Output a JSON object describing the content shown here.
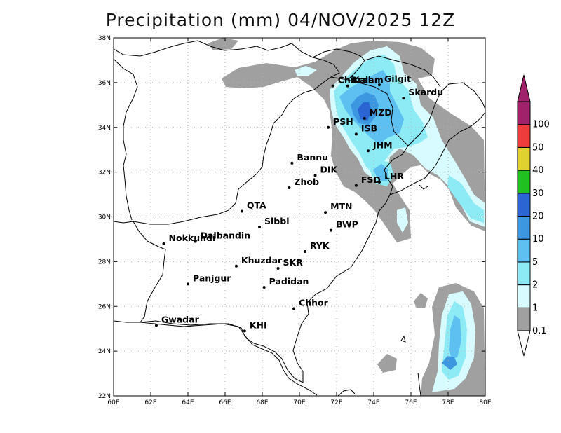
{
  "title": "Precipitation (mm) 04/NOV/2025 12Z",
  "map": {
    "lon_range": [
      60,
      80
    ],
    "lat_range": [
      22,
      38
    ],
    "lon_ticks": [
      {
        "value": 60,
        "label": "60E"
      },
      {
        "value": 62,
        "label": "62E"
      },
      {
        "value": 64,
        "label": "64E"
      },
      {
        "value": 66,
        "label": "66E"
      },
      {
        "value": 68,
        "label": "68E"
      },
      {
        "value": 70,
        "label": "70E"
      },
      {
        "value": 72,
        "label": "72E"
      },
      {
        "value": 74,
        "label": "74E"
      },
      {
        "value": 76,
        "label": "76E"
      },
      {
        "value": 78,
        "label": "78E"
      },
      {
        "value": 80,
        "label": "80E"
      }
    ],
    "lat_ticks": [
      {
        "value": 22,
        "label": "22N"
      },
      {
        "value": 24,
        "label": "24N"
      },
      {
        "value": 26,
        "label": "26N"
      },
      {
        "value": 28,
        "label": "28N"
      },
      {
        "value": 30,
        "label": "30N"
      },
      {
        "value": 32,
        "label": "32N"
      },
      {
        "value": 34,
        "label": "34N"
      },
      {
        "value": 36,
        "label": "36N"
      },
      {
        "value": 38,
        "label": "38N"
      }
    ],
    "grid": true,
    "cities": [
      {
        "name": "Chitral",
        "lon": 71.8,
        "lat": 35.85
      },
      {
        "name": "Gilgit",
        "lon": 74.3,
        "lat": 35.9
      },
      {
        "name": "Kalam",
        "lon": 72.6,
        "lat": 35.85
      },
      {
        "name": "Skardu",
        "lon": 75.6,
        "lat": 35.3
      },
      {
        "name": "MZD",
        "lon": 73.5,
        "lat": 34.4
      },
      {
        "name": "PSH",
        "lon": 71.55,
        "lat": 34.0
      },
      {
        "name": "ISB",
        "lon": 73.05,
        "lat": 33.7
      },
      {
        "name": "JHM",
        "lon": 73.7,
        "lat": 32.95
      },
      {
        "name": "Bannu",
        "lon": 69.6,
        "lat": 32.4
      },
      {
        "name": "DIK",
        "lon": 70.85,
        "lat": 31.85
      },
      {
        "name": "FSD",
        "lon": 73.05,
        "lat": 31.4
      },
      {
        "name": "LHR",
        "lon": 74.3,
        "lat": 31.55
      },
      {
        "name": "Zhob",
        "lon": 69.45,
        "lat": 31.3
      },
      {
        "name": "QTA",
        "lon": 66.9,
        "lat": 30.25
      },
      {
        "name": "MTN",
        "lon": 71.4,
        "lat": 30.2
      },
      {
        "name": "Sibbi",
        "lon": 67.85,
        "lat": 29.55
      },
      {
        "name": "BWP",
        "lon": 71.7,
        "lat": 29.4
      },
      {
        "name": "Dalbandin",
        "lon": 64.4,
        "lat": 28.9
      },
      {
        "name": "Nokkundi",
        "lon": 62.7,
        "lat": 28.8
      },
      {
        "name": "RYK",
        "lon": 70.3,
        "lat": 28.45
      },
      {
        "name": "Khuzdar",
        "lon": 66.6,
        "lat": 27.8
      },
      {
        "name": "SKR",
        "lon": 68.85,
        "lat": 27.7
      },
      {
        "name": "Panjgur",
        "lon": 64.0,
        "lat": 27.0
      },
      {
        "name": "Padidan",
        "lon": 68.1,
        "lat": 26.85
      },
      {
        "name": "Chhor",
        "lon": 69.7,
        "lat": 25.9
      },
      {
        "name": "KHI",
        "lon": 67.05,
        "lat": 24.9
      },
      {
        "name": "Gwadar",
        "lon": 62.3,
        "lat": 25.15
      }
    ]
  },
  "colorbar": {
    "levels": [
      {
        "label": "0.1",
        "color": "#a0a0a0"
      },
      {
        "label": "1",
        "color": "#d8fbff"
      },
      {
        "label": "2",
        "color": "#8cebf5"
      },
      {
        "label": "5",
        "color": "#5ec0f0"
      },
      {
        "label": "10",
        "color": "#3d96e0"
      },
      {
        "label": "20",
        "color": "#2b64d3"
      },
      {
        "label": "30",
        "color": "#20c020"
      },
      {
        "label": "40",
        "color": "#e0d030"
      },
      {
        "label": "50",
        "color": "#ee3c3c"
      },
      {
        "label": "100",
        "color": "#a0226a"
      }
    ],
    "under_color": "#ffffff",
    "over_color": "#a0226a"
  }
}
